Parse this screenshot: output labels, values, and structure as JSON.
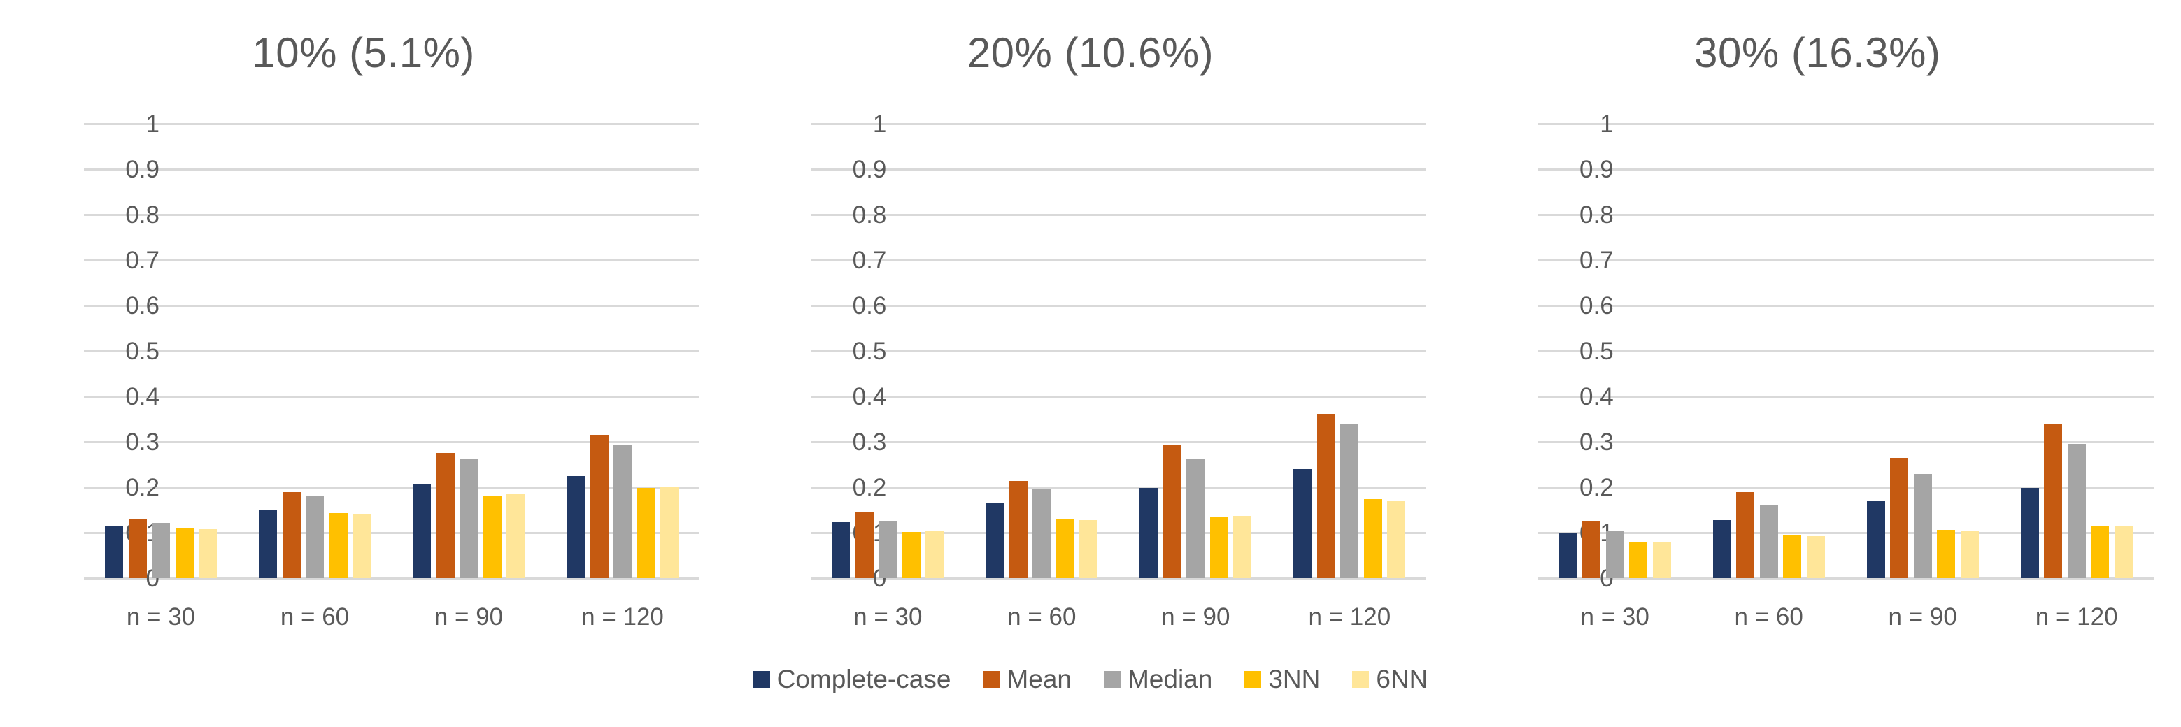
{
  "colors": {
    "complete_case": "#203864",
    "mean": "#C55A11",
    "median": "#A5A5A5",
    "nn3": "#FFC000",
    "nn6": "#FFE699",
    "gridline": "#D9D9D9",
    "text": "#595959"
  },
  "legend": {
    "position": "bottom-center",
    "items": [
      {
        "label": "Complete-case",
        "color": "#203864"
      },
      {
        "label": "Mean",
        "color": "#C55A11"
      },
      {
        "label": "Median",
        "color": "#A5A5A5"
      },
      {
        "label": "3NN",
        "color": "#FFC000"
      },
      {
        "label": "6NN",
        "color": "#FFE699"
      }
    ]
  },
  "chart_data": [
    {
      "type": "bar",
      "title": "10% (5.1%)",
      "categories": [
        "n = 30",
        "n = 60",
        "n = 90",
        "n = 120"
      ],
      "series": [
        {
          "name": "Complete-case",
          "color": "#203864",
          "values": [
            0.115,
            0.151,
            0.206,
            0.225
          ]
        },
        {
          "name": "Mean",
          "color": "#C55A11",
          "values": [
            0.13,
            0.19,
            0.275,
            0.315
          ]
        },
        {
          "name": "Median",
          "color": "#A5A5A5",
          "values": [
            0.122,
            0.18,
            0.262,
            0.294
          ]
        },
        {
          "name": "3NN",
          "color": "#FFC000",
          "values": [
            0.109,
            0.143,
            0.18,
            0.199
          ]
        },
        {
          "name": "6NN",
          "color": "#FFE699",
          "values": [
            0.108,
            0.142,
            0.184,
            0.201
          ]
        }
      ],
      "xlabel": "",
      "ylabel": "",
      "ylim": [
        0,
        1
      ],
      "yticks": [
        "0",
        "0.1",
        "0.2",
        "0.3",
        "0.4",
        "0.5",
        "0.6",
        "0.7",
        "0.8",
        "0.9",
        "1"
      ],
      "grid": true
    },
    {
      "type": "bar",
      "title": "20% (10.6%)",
      "categories": [
        "n = 30",
        "n = 60",
        "n = 90",
        "n = 120"
      ],
      "series": [
        {
          "name": "Complete-case",
          "color": "#203864",
          "values": [
            0.123,
            0.165,
            0.198,
            0.24
          ]
        },
        {
          "name": "Mean",
          "color": "#C55A11",
          "values": [
            0.144,
            0.214,
            0.294,
            0.362
          ]
        },
        {
          "name": "Median",
          "color": "#A5A5A5",
          "values": [
            0.124,
            0.197,
            0.262,
            0.34
          ]
        },
        {
          "name": "3NN",
          "color": "#FFC000",
          "values": [
            0.101,
            0.13,
            0.135,
            0.174
          ]
        },
        {
          "name": "6NN",
          "color": "#FFE699",
          "values": [
            0.104,
            0.128,
            0.137,
            0.171
          ]
        }
      ],
      "xlabel": "",
      "ylabel": "",
      "ylim": [
        0,
        1
      ],
      "yticks": [
        "0",
        "0.1",
        "0.2",
        "0.3",
        "0.4",
        "0.5",
        "0.6",
        "0.7",
        "0.8",
        "0.9",
        "1"
      ],
      "grid": true
    },
    {
      "type": "bar",
      "title": "30% (16.3%)",
      "categories": [
        "n = 30",
        "n = 60",
        "n = 90",
        "n = 120"
      ],
      "series": [
        {
          "name": "Complete-case",
          "color": "#203864",
          "values": [
            0.099,
            0.127,
            0.169,
            0.199
          ]
        },
        {
          "name": "Mean",
          "color": "#C55A11",
          "values": [
            0.126,
            0.189,
            0.265,
            0.338
          ]
        },
        {
          "name": "Median",
          "color": "#A5A5A5",
          "values": [
            0.105,
            0.161,
            0.23,
            0.295
          ]
        },
        {
          "name": "3NN",
          "color": "#FFC000",
          "values": [
            0.079,
            0.094,
            0.106,
            0.114
          ]
        },
        {
          "name": "6NN",
          "color": "#FFE699",
          "values": [
            0.079,
            0.093,
            0.105,
            0.114
          ]
        }
      ],
      "xlabel": "",
      "ylabel": "",
      "ylim": [
        0,
        1
      ],
      "yticks": [
        "0",
        "0.1",
        "0.2",
        "0.3",
        "0.4",
        "0.5",
        "0.6",
        "0.7",
        "0.8",
        "0.9",
        "1"
      ],
      "grid": true
    }
  ]
}
